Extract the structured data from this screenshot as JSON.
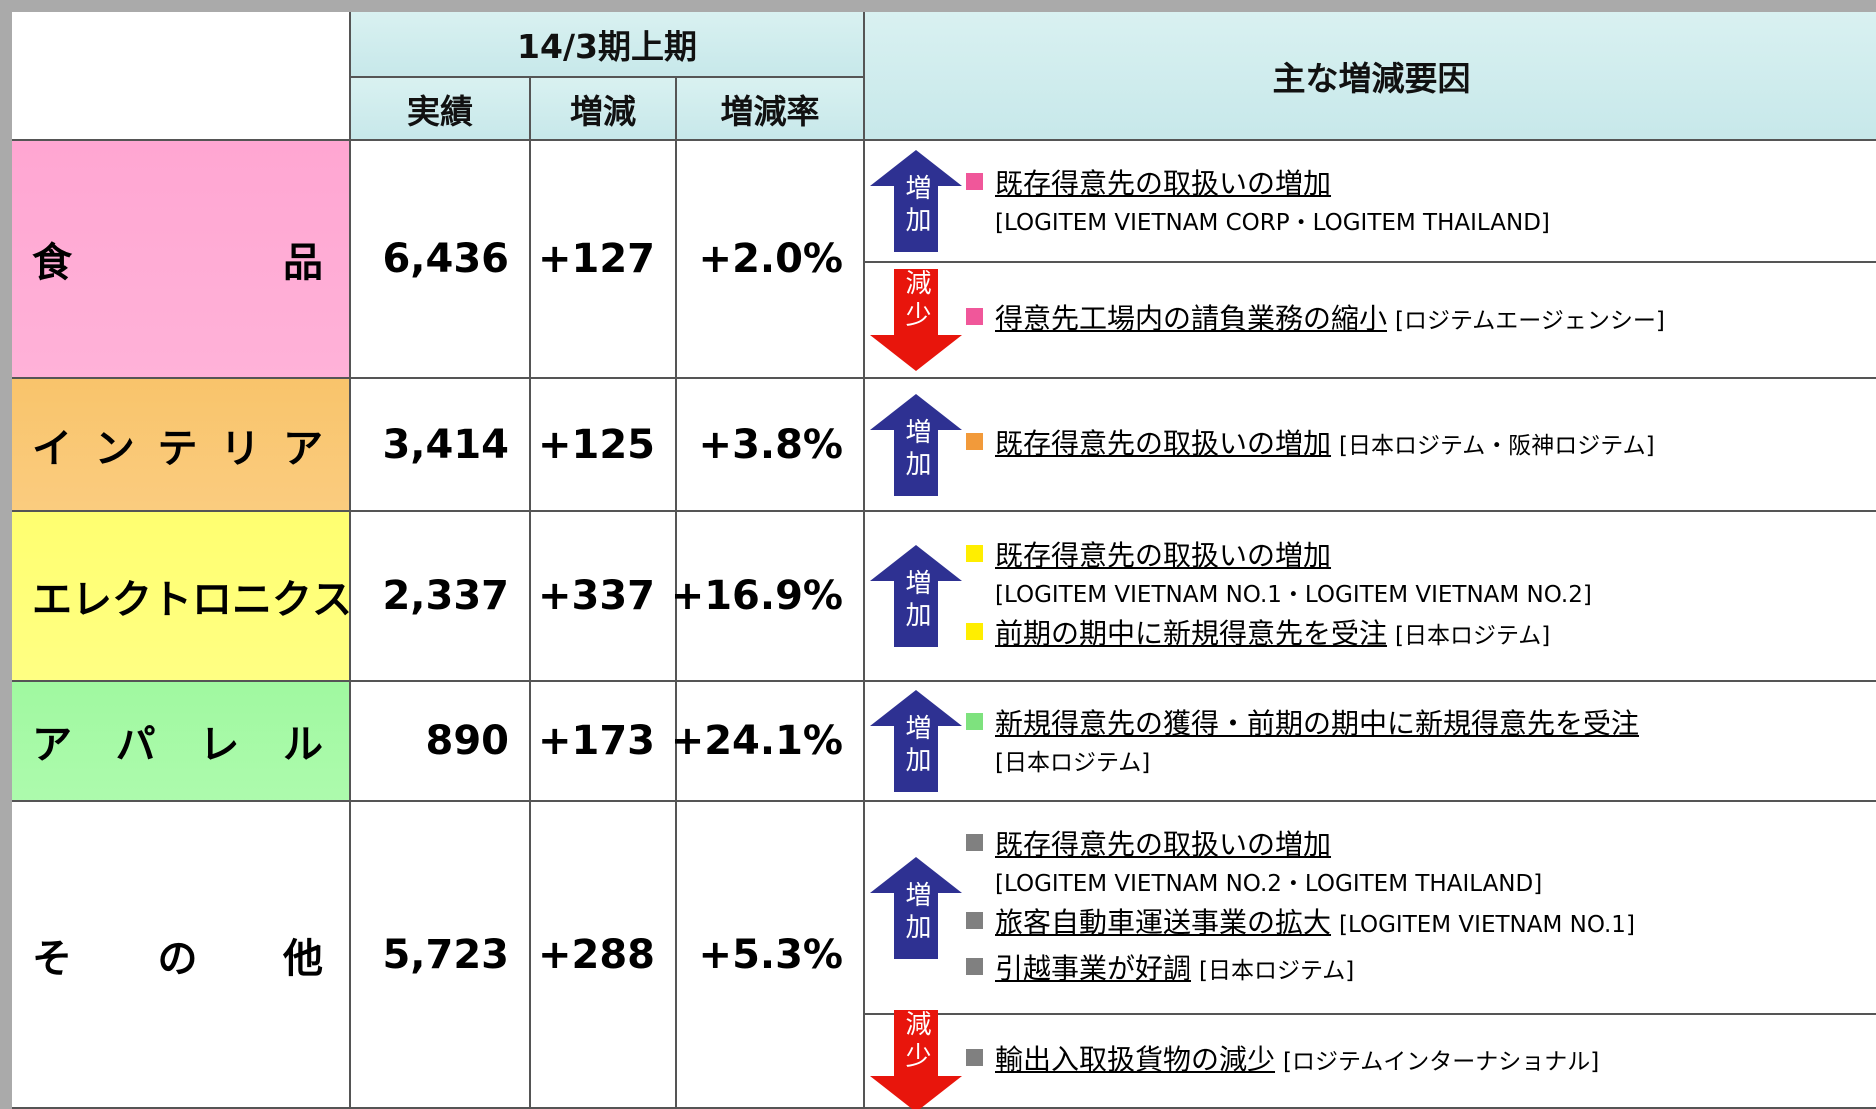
{
  "header": {
    "period": "14/3期上期",
    "columns": [
      "実績",
      "増減",
      "増減率"
    ],
    "reasons": "主な増減要因"
  },
  "rows": [
    {
      "category": "食品",
      "color": "#ffa6d2",
      "bullet_color": "#f0579a",
      "actual": "6,436",
      "change": "+127",
      "rate": "+2.0%",
      "groups": [
        {
          "label": "増加",
          "direction": "up",
          "color": "#2e3192",
          "items": [
            {
              "text": "既存得意先の取扱いの増加",
              "note": "[LOGITEM VIETNAM CORP・LOGITEM THAILAND]",
              "note_on_new_line": true
            }
          ]
        },
        {
          "label": "減少",
          "direction": "down",
          "color": "#e8150c",
          "items": [
            {
              "text": "得意先工場内の請負業務の縮小",
              "note": "[ロジテムエージェンシー]",
              "note_on_new_line": false
            }
          ]
        }
      ]
    },
    {
      "category": "インテリア",
      "color": "#f9c46b",
      "bullet_color": "#f29a3a",
      "actual": "3,414",
      "change": "+125",
      "rate": "+3.8%",
      "groups": [
        {
          "label": "増加",
          "direction": "up",
          "color": "#2e3192",
          "items": [
            {
              "text": "既存得意先の取扱いの増加",
              "note": "[日本ロジテム・阪神ロジテム]",
              "note_on_new_line": false
            }
          ]
        }
      ]
    },
    {
      "category": "エレクトロニクス",
      "color": "#ffff70",
      "bullet_color": "#ffee00",
      "actual": "2,337",
      "change": "+337",
      "rate": "+16.9%",
      "groups": [
        {
          "label": "増加",
          "direction": "up",
          "color": "#2e3192",
          "items": [
            {
              "text": "既存得意先の取扱いの増加",
              "note": "[LOGITEM VIETNAM NO.1・LOGITEM VIETNAM NO.2]",
              "note_on_new_line": true
            },
            {
              "text": "前期の期中に新規得意先を受注",
              "note": "[日本ロジテム]",
              "note_on_new_line": false
            }
          ]
        }
      ]
    },
    {
      "category": "アパレル",
      "color": "#a0f9a0",
      "bullet_color": "#7ee27e",
      "actual": "890",
      "change": "+173",
      "rate": "+24.1%",
      "groups": [
        {
          "label": "増加",
          "direction": "up",
          "color": "#2e3192",
          "items": [
            {
              "text": "新規得意先の獲得・前期の期中に新規得意先を受注",
              "note": "[日本ロジテム]",
              "note_on_new_line": true
            }
          ]
        }
      ]
    },
    {
      "category": "その他",
      "color": "#ffffff",
      "bullet_color": "#808080",
      "actual": "5,723",
      "change": "+288",
      "rate": "+5.3%",
      "groups": [
        {
          "label": "増加",
          "direction": "up",
          "color": "#2e3192",
          "items": [
            {
              "text": "既存得意先の取扱いの増加",
              "note": "[LOGITEM VIETNAM NO.2・LOGITEM THAILAND]",
              "note_on_new_line": true
            },
            {
              "text": "旅客自動車運送事業の拡大",
              "note": "[LOGITEM VIETNAM NO.1]",
              "note_on_new_line": false
            },
            {
              "text": "引越事業が好調",
              "note": "[日本ロジテム]",
              "note_on_new_line": false
            }
          ]
        },
        {
          "label": "減少",
          "direction": "down",
          "color": "#e8150c",
          "items": [
            {
              "text": "輸出入取扱貨物の減少",
              "note": "[ロジテムインターナショナル]",
              "note_on_new_line": false
            }
          ]
        }
      ]
    }
  ]
}
